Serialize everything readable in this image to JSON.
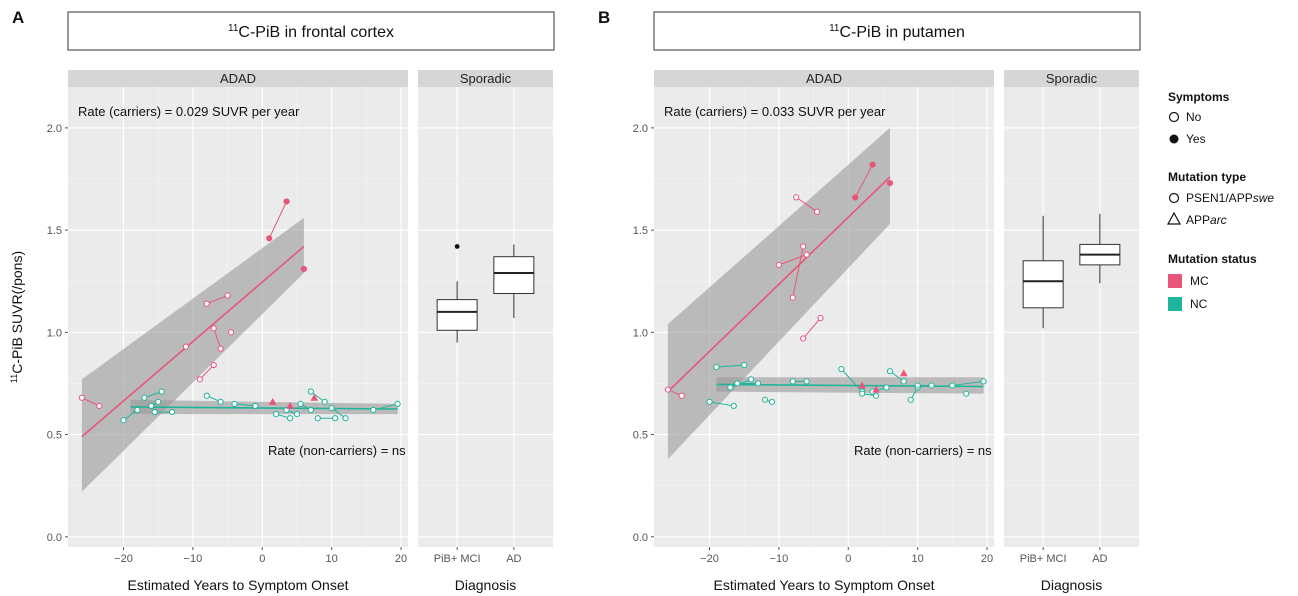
{
  "colors": {
    "mc": "#e8557a",
    "nc": "#1fb59a",
    "panel_bg": "#ebebeb",
    "strip_bg": "#d6d6d6",
    "band": "#999999",
    "grid": "#ffffff"
  },
  "chart_data": [
    {
      "type": "scatter",
      "panel_letter": "A",
      "title": "11C-PiB in frontal cortex",
      "ylabel": "11C-PiB SUVR(/pons)",
      "adad": {
        "strip": "ADAD",
        "xlabel": "Estimated Years to Symptom Onset",
        "xlim": [
          -28,
          21
        ],
        "ylim": [
          -0.05,
          2.2
        ],
        "xticks": [
          -20,
          -10,
          0,
          10,
          20
        ],
        "yticks": [
          0.0,
          0.5,
          1.0,
          1.5,
          2.0
        ],
        "rate_carriers": "Rate (carriers) = 0.029 SUVR per year",
        "rate_noncarriers": "Rate (non-carriers) = ns",
        "mc_fit": {
          "x": [
            -26,
            6
          ],
          "y": [
            0.49,
            1.42
          ],
          "band_lo": [
            0.22,
            1.29
          ],
          "band_hi": [
            0.77,
            1.56
          ]
        },
        "nc_fit": {
          "x": [
            -19,
            19.5
          ],
          "y": [
            0.635,
            0.625
          ],
          "band_lo": [
            0.6,
            0.6
          ],
          "band_hi": [
            0.67,
            0.65
          ]
        },
        "mc_pairs": [
          {
            "x": [
              -26,
              -23.5
            ],
            "y": [
              0.68,
              0.64
            ],
            "filled": false
          },
          {
            "x": [
              -8,
              -5
            ],
            "y": [
              1.14,
              1.18
            ],
            "filled": false
          },
          {
            "x": [
              -7,
              -6
            ],
            "y": [
              1.02,
              0.92
            ],
            "filled": false
          },
          {
            "x": [
              -9,
              -7
            ],
            "y": [
              0.77,
              0.84
            ],
            "filled": false
          },
          {
            "x": [
              -4.5
            ],
            "y": [
              1.0
            ],
            "filled": false
          },
          {
            "x": [
              -11
            ],
            "y": [
              0.93
            ],
            "filled": false
          },
          {
            "x": [
              1,
              3.5
            ],
            "y": [
              1.46,
              1.64
            ],
            "filled": true
          },
          {
            "x": [
              6
            ],
            "y": [
              1.31
            ],
            "filled": true
          }
        ],
        "mc_triangles": {
          "x": [
            1.5,
            4,
            7.5
          ],
          "y": [
            0.66,
            0.64,
            0.68
          ]
        },
        "nc_pairs": [
          {
            "x": [
              -20,
              -18
            ],
            "y": [
              0.57,
              0.62
            ]
          },
          {
            "x": [
              -17,
              -14.5
            ],
            "y": [
              0.68,
              0.71
            ]
          },
          {
            "x": [
              -16,
              -15
            ],
            "y": [
              0.64,
              0.66
            ]
          },
          {
            "x": [
              -15.5,
              -13
            ],
            "y": [
              0.61,
              0.61
            ]
          },
          {
            "x": [
              -8,
              -6
            ],
            "y": [
              0.69,
              0.66
            ]
          },
          {
            "x": [
              -4,
              -1
            ],
            "y": [
              0.65,
              0.64
            ]
          },
          {
            "x": [
              2,
              4
            ],
            "y": [
              0.6,
              0.58
            ]
          },
          {
            "x": [
              3.5,
              5
            ],
            "y": [
              0.62,
              0.6
            ]
          },
          {
            "x": [
              5.5,
              7
            ],
            "y": [
              0.65,
              0.62
            ]
          },
          {
            "x": [
              7,
              9
            ],
            "y": [
              0.71,
              0.66
            ]
          },
          {
            "x": [
              8,
              10.5
            ],
            "y": [
              0.58,
              0.58
            ]
          },
          {
            "x": [
              10,
              12
            ],
            "y": [
              0.63,
              0.58
            ]
          },
          {
            "x": [
              16,
              19.5
            ],
            "y": [
              0.62,
              0.65
            ]
          }
        ]
      },
      "sporadic": {
        "strip": "Sporadic",
        "xlabel": "Diagnosis",
        "categories": [
          "PiB+ MCI",
          "AD"
        ],
        "boxes": [
          {
            "min": 0.95,
            "q1": 1.01,
            "median": 1.1,
            "q3": 1.16,
            "max": 1.25,
            "outliers": [
              1.42
            ]
          },
          {
            "min": 1.07,
            "q1": 1.19,
            "median": 1.29,
            "q3": 1.37,
            "max": 1.43,
            "outliers": []
          }
        ]
      }
    },
    {
      "type": "scatter",
      "panel_letter": "B",
      "title": "11C-PiB in putamen",
      "ylabel": "",
      "adad": {
        "strip": "ADAD",
        "xlabel": "Estimated Years to Symptom Onset",
        "xlim": [
          -28,
          21
        ],
        "ylim": [
          -0.05,
          2.2
        ],
        "xticks": [
          -20,
          -10,
          0,
          10,
          20
        ],
        "yticks": [
          0.0,
          0.5,
          1.0,
          1.5,
          2.0
        ],
        "rate_carriers": "Rate (carriers) = 0.033 SUVR per year",
        "rate_noncarriers": "Rate (non-carriers) = ns",
        "mc_fit": {
          "x": [
            -26,
            6
          ],
          "y": [
            0.71,
            1.76
          ],
          "band_lo": [
            0.38,
            1.53
          ],
          "band_hi": [
            1.04,
            2.0
          ]
        },
        "nc_fit": {
          "x": [
            -19,
            19.5
          ],
          "y": [
            0.745,
            0.735
          ],
          "band_lo": [
            0.71,
            0.7
          ],
          "band_hi": [
            0.78,
            0.78
          ]
        },
        "mc_pairs": [
          {
            "x": [
              -26,
              -24
            ],
            "y": [
              0.72,
              0.69
            ]
          },
          {
            "x": [
              -7.5,
              -4.5
            ],
            "y": [
              1.66,
              1.59
            ]
          },
          {
            "x": [
              -6.5,
              -8
            ],
            "y": [
              1.42,
              1.17
            ]
          },
          {
            "x": [
              -6,
              -10
            ],
            "y": [
              1.38,
              1.33
            ]
          },
          {
            "x": [
              -6.5,
              -4
            ],
            "y": [
              0.97,
              1.07
            ]
          },
          {
            "x": [
              1,
              3.5
            ],
            "y": [
              1.66,
              1.82
            ],
            "filled": true
          },
          {
            "x": [
              6
            ],
            "y": [
              1.73
            ],
            "filled": true
          }
        ],
        "mc_triangles": {
          "x": [
            2,
            4,
            8
          ],
          "y": [
            0.74,
            0.72,
            0.8
          ]
        },
        "nc_pairs": [
          {
            "x": [
              -20,
              -16.5
            ],
            "y": [
              0.66,
              0.64
            ]
          },
          {
            "x": [
              -19,
              -15
            ],
            "y": [
              0.83,
              0.84
            ]
          },
          {
            "x": [
              -17,
              -14
            ],
            "y": [
              0.73,
              0.77
            ]
          },
          {
            "x": [
              -16,
              -13
            ],
            "y": [
              0.75,
              0.75
            ]
          },
          {
            "x": [
              -12,
              -11
            ],
            "y": [
              0.67,
              0.66
            ]
          },
          {
            "x": [
              -8,
              -6
            ],
            "y": [
              0.76,
              0.76
            ]
          },
          {
            "x": [
              -1,
              2
            ],
            "y": [
              0.82,
              0.71
            ]
          },
          {
            "x": [
              2,
              4
            ],
            "y": [
              0.7,
              0.69
            ]
          },
          {
            "x": [
              3.5,
              5.5
            ],
            "y": [
              0.71,
              0.73
            ]
          },
          {
            "x": [
              6,
              8
            ],
            "y": [
              0.81,
              0.76
            ]
          },
          {
            "x": [
              9,
              10
            ],
            "y": [
              0.67,
              0.73
            ]
          },
          {
            "x": [
              10,
              12
            ],
            "y": [
              0.74,
              0.74
            ]
          },
          {
            "x": [
              15,
              19.5
            ],
            "y": [
              0.74,
              0.76
            ]
          },
          {
            "x": [
              17
            ],
            "y": [
              0.7
            ]
          }
        ]
      },
      "sporadic": {
        "strip": "Sporadic",
        "xlabel": "Diagnosis",
        "categories": [
          "PiB+ MCI",
          "AD"
        ],
        "boxes": [
          {
            "min": 1.02,
            "q1": 1.12,
            "median": 1.25,
            "q3": 1.35,
            "max": 1.57,
            "outliers": []
          },
          {
            "min": 1.24,
            "q1": 1.33,
            "median": 1.38,
            "q3": 1.43,
            "max": 1.58,
            "outliers": []
          }
        ]
      }
    }
  ],
  "legend": {
    "symptoms": {
      "title": "Symptoms",
      "items": [
        "No",
        "Yes"
      ]
    },
    "mutation_type": {
      "title": "Mutation type",
      "items": [
        {
          "pre": "PSEN1/APP",
          "italic": "swe"
        },
        {
          "pre": "APP",
          "italic": "arc"
        }
      ]
    },
    "mutation_status": {
      "title": "Mutation status",
      "items": [
        "MC",
        "NC"
      ]
    }
  }
}
